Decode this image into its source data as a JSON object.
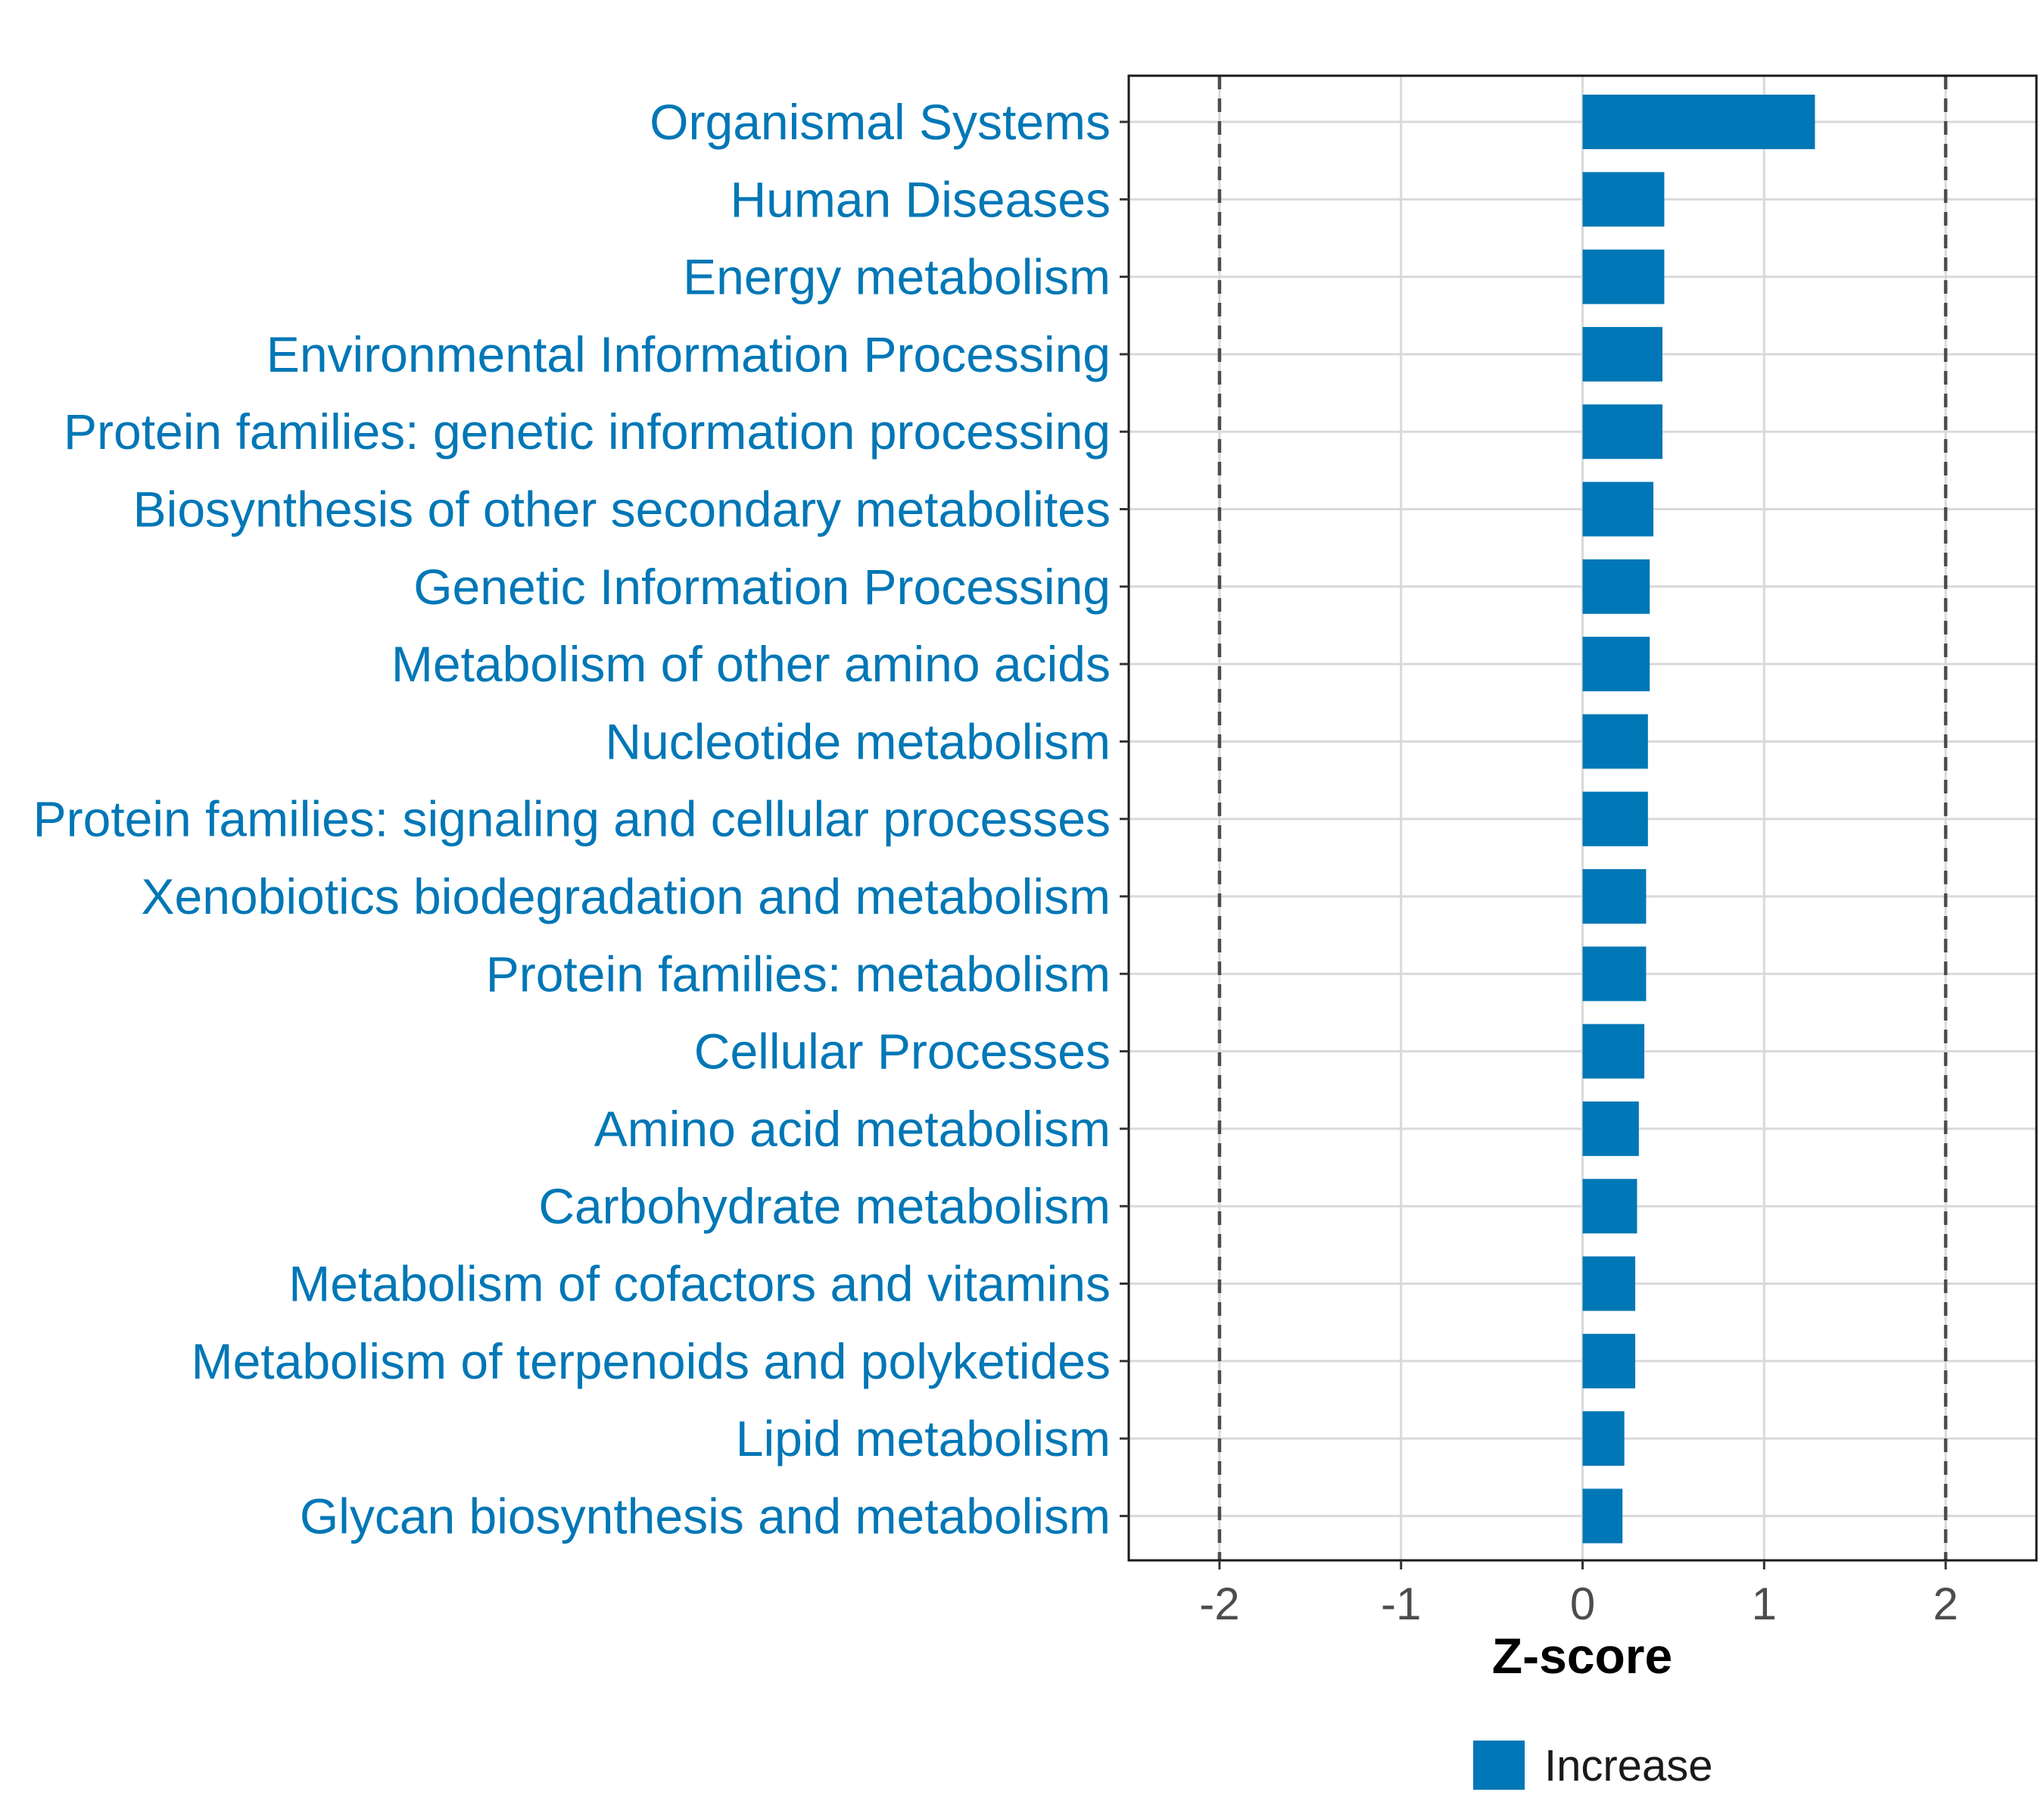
{
  "chart_data": {
    "type": "bar",
    "orientation": "horizontal",
    "categories": [
      "Organismal Systems",
      "Human Diseases",
      "Energy metabolism",
      "Environmental Information Processing",
      "Protein families: genetic information processing",
      "Biosynthesis of other secondary metabolites",
      "Genetic Information Processing",
      "Metabolism of other amino acids",
      "Nucleotide metabolism",
      "Protein families: signaling and cellular processes",
      "Xenobiotics biodegradation and metabolism",
      "Protein families: metabolism",
      "Cellular Processes",
      "Amino acid metabolism",
      "Carbohydrate metabolism",
      "Metabolism of cofactors and vitamins",
      "Metabolism of terpenoids and polyketides",
      "Lipid metabolism",
      "Glycan biosynthesis and metabolism"
    ],
    "values": [
      1.28,
      0.45,
      0.45,
      0.44,
      0.44,
      0.39,
      0.37,
      0.37,
      0.36,
      0.36,
      0.35,
      0.35,
      0.34,
      0.31,
      0.3,
      0.29,
      0.29,
      0.23,
      0.22
    ],
    "series_name": "Increase",
    "title": "",
    "xlabel": "Z-score",
    "ylabel": "",
    "xlim": [
      -2.5,
      2.5
    ],
    "xticks": [
      -2,
      -1,
      0,
      1,
      2
    ],
    "xtick_labels": [
      "-2",
      "-1",
      "0",
      "1",
      "2"
    ],
    "reference_lines": [
      -2,
      2
    ],
    "grid": true,
    "legend": {
      "position": "bottom",
      "items": [
        {
          "label": "Increase",
          "color": "#0077b6"
        }
      ]
    },
    "colors": {
      "bar": "#0077b6",
      "label": "#0077b6",
      "grid": "#d9d9d9",
      "reference": "#4d4d4d"
    }
  }
}
